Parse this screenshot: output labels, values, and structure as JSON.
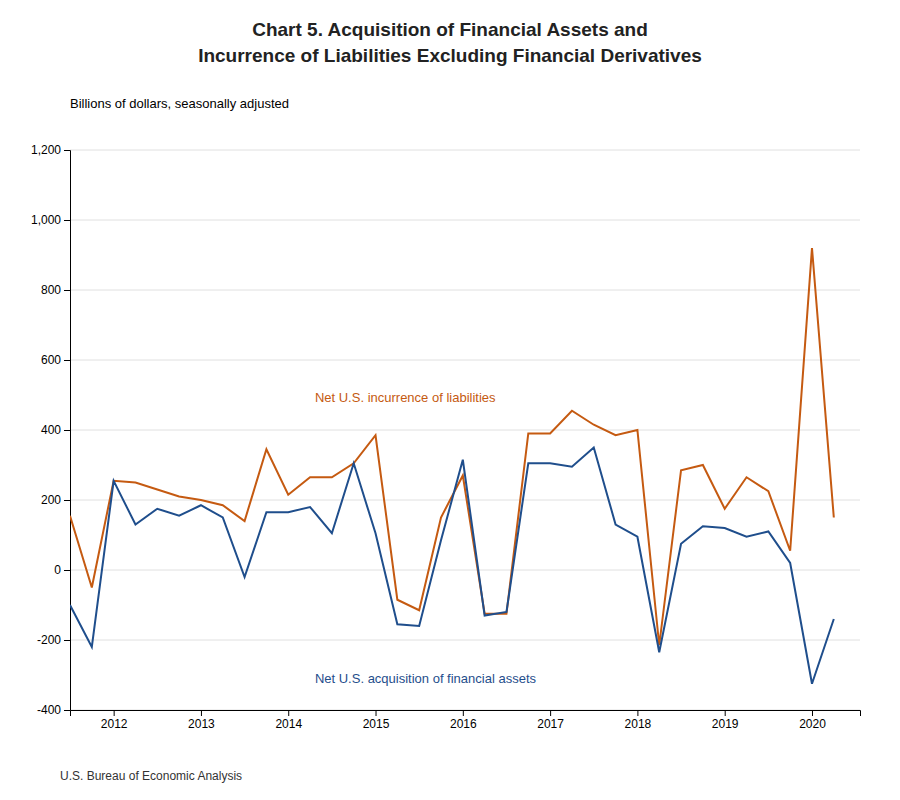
{
  "chart_data": {
    "type": "line",
    "title": [
      "Chart 5. Acquisition of Financial Assets and",
      "Incurrence of Liabilities Excluding Financial Derivatives"
    ],
    "subtitle": "Billions of dollars, seasonally adjusted",
    "source": "U.S. Bureau of Economic Analysis",
    "x": [
      2011.5,
      2011.75,
      2012.0,
      2012.25,
      2012.5,
      2012.75,
      2013.0,
      2013.25,
      2013.5,
      2013.75,
      2014.0,
      2014.25,
      2014.5,
      2014.75,
      2015.0,
      2015.25,
      2015.5,
      2015.75,
      2016.0,
      2016.25,
      2016.5,
      2016.75,
      2017.0,
      2017.25,
      2017.5,
      2017.75,
      2018.0,
      2018.25,
      2018.5,
      2018.75,
      2019.0,
      2019.25,
      2019.5,
      2019.75,
      2020.0,
      2020.25
    ],
    "series": [
      {
        "name": "Net U.S. incurrence of liabilities",
        "color": "#C55A11",
        "values": [
          155,
          -50,
          255,
          250,
          230,
          210,
          200,
          185,
          140,
          345,
          215,
          265,
          265,
          305,
          385,
          -85,
          -115,
          150,
          270,
          -125,
          -125,
          390,
          390,
          455,
          415,
          385,
          400,
          -215,
          285,
          300,
          175,
          265,
          225,
          55,
          920,
          150
        ]
      },
      {
        "name": "Net U.S. acquisition of financial assets",
        "color": "#1F4E8C",
        "values": [
          -100,
          -220,
          255,
          130,
          175,
          155,
          185,
          150,
          -20,
          165,
          165,
          180,
          105,
          305,
          105,
          -155,
          -160,
          85,
          315,
          -130,
          -120,
          305,
          305,
          295,
          350,
          130,
          95,
          -235,
          75,
          125,
          120,
          95,
          110,
          20,
          -325,
          -140
        ]
      }
    ],
    "xlim": [
      2011.5,
      2020.55
    ],
    "xticks": [
      2012,
      2013,
      2014,
      2015,
      2016,
      2017,
      2018,
      2019,
      2020
    ],
    "ylim": [
      -400,
      1200
    ],
    "yticks": [
      -400,
      -200,
      0,
      200,
      400,
      600,
      800,
      {
        "value": 1000,
        "label": "1,000"
      },
      {
        "value": 1200,
        "label": "1,200"
      }
    ],
    "grid": true
  }
}
